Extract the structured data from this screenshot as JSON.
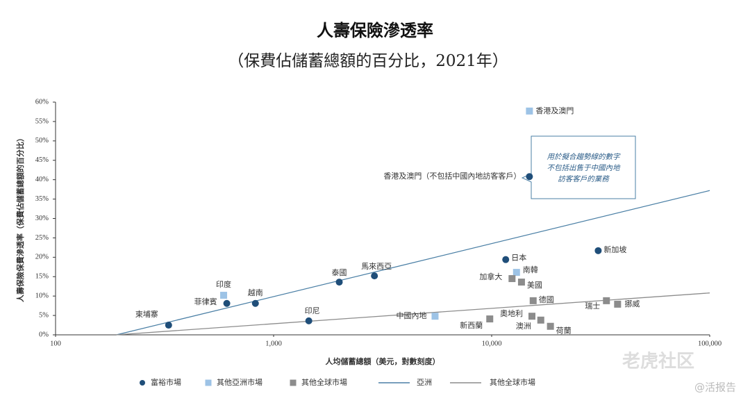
{
  "chart_data": {
    "type": "scatter",
    "title": "人壽保險滲透率",
    "subtitle": "（保費佔儲蓄總額的百分比，2021年）",
    "x_label": "人均儲蓄總額（美元，對數刻度）",
    "y_label": "人壽保險保費滲透率（保費佔儲蓄總額的百分比）",
    "xscale": "log",
    "xlim": [
      100,
      100000
    ],
    "xticks": [
      100,
      {
        "value": 1000,
        "label": "1,000"
      },
      {
        "value": 10000,
        "label": "10,000"
      },
      {
        "value": 100000,
        "label": "100,000"
      }
    ],
    "ylim": [
      0,
      60
    ],
    "yticks": [
      {
        "value": 0,
        "label": "0%"
      },
      {
        "value": 5,
        "label": "5%"
      },
      {
        "value": 10,
        "label": "10%"
      },
      {
        "value": 15,
        "label": "15%"
      },
      {
        "value": 20,
        "label": "20%"
      },
      {
        "value": 25,
        "label": "25%"
      },
      {
        "value": 30,
        "label": "30%"
      },
      {
        "value": 35,
        "label": "35%"
      },
      {
        "value": 40,
        "label": "40%"
      },
      {
        "value": 45,
        "label": "45%"
      },
      {
        "value": 50,
        "label": "50%"
      },
      {
        "value": 55,
        "label": "55%"
      },
      {
        "value": 60,
        "label": "60%"
      }
    ],
    "grid": false,
    "series": [
      {
        "name": "富裕市場",
        "color": "#1f4e79",
        "marker": "circle",
        "labels": [
          "柬埔寨",
          "菲律賓",
          "越南",
          "印尼",
          "泰國",
          "馬來西亞",
          "日本",
          "香港及澳門（不包括中國內地訪客客戶）",
          "新加坡"
        ],
        "x": [
          330,
          610,
          825,
          1450,
          2000,
          2900,
          11600,
          14900,
          30800
        ],
        "values": [
          2.5,
          8.1,
          8.1,
          3.6,
          13.6,
          15.2,
          19.4,
          40.8,
          21.7
        ]
      },
      {
        "name": "其他亞洲市場",
        "color": "#9dc3e6",
        "marker": "square",
        "labels": [
          "印度",
          "中國內地",
          "南韓",
          "香港及澳門"
        ],
        "x": [
          590,
          5500,
          13000,
          14900
        ],
        "values": [
          10.2,
          4.8,
          16.1,
          57.7
        ]
      },
      {
        "name": "其他全球市場",
        "color": "#8c8c8c",
        "marker": "square",
        "labels": [
          "新西蘭",
          "加拿大",
          "美國",
          "德國",
          "奧地利",
          "澳洲",
          "荷蘭",
          "瑞士",
          "挪威"
        ],
        "x": [
          9800,
          12400,
          13700,
          15500,
          15300,
          16800,
          18600,
          33600,
          37800
        ],
        "values": [
          4.1,
          14.5,
          13.6,
          8.8,
          4.8,
          3.8,
          2.2,
          8.8,
          7.9
        ]
      }
    ],
    "trendlines": [
      {
        "name": "亞洲",
        "color": "#4a7fa5",
        "x": [
          190,
          100000
        ],
        "values": [
          0,
          37.2
        ]
      },
      {
        "name": "其他全球市場",
        "color": "#8c8c8c",
        "x": [
          190,
          100000
        ],
        "values": [
          0,
          10.8
        ]
      }
    ],
    "annotation": [
      "用於擬合趨勢線的數字",
      "不包括出售于中國內地",
      "訪客客戶的業務"
    ],
    "watermark": [
      "老虎社区",
      "@活报告"
    ]
  }
}
